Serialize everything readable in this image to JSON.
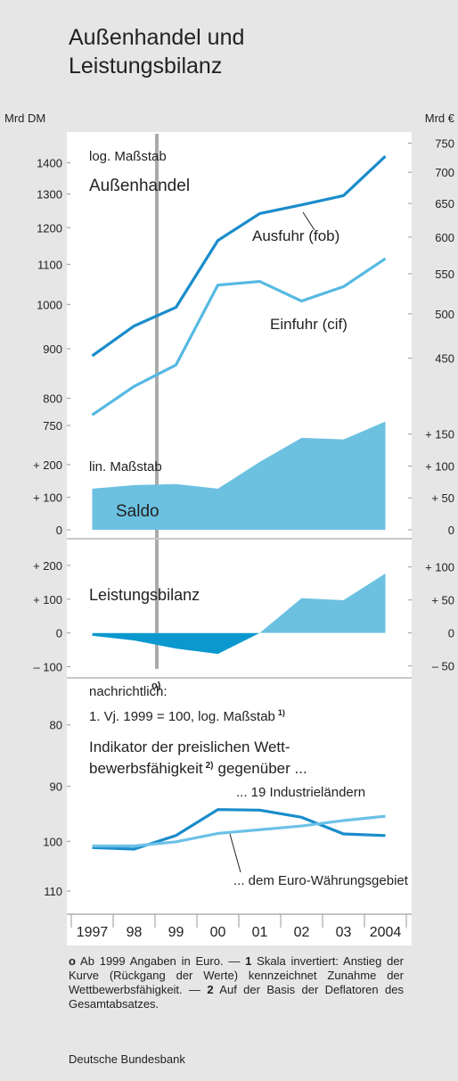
{
  "title": [
    "Außenhandel und",
    "Leistungsbilanz"
  ],
  "euro_marker": "o)",
  "chart_data": [
    {
      "type": "line",
      "log": true,
      "ylabel": "Mrd DM",
      "y2label": "Mrd €",
      "ylim": [
        750,
        1500
      ],
      "yticks": [
        750,
        800,
        900,
        1000,
        1100,
        1200,
        1300,
        1400
      ],
      "y2lim": [
        383.5,
        767
      ],
      "y2ticks": [
        450,
        500,
        550,
        600,
        650,
        700,
        750
      ],
      "annotations": [
        "log. Maßstab",
        "Außenhandel"
      ],
      "series": [
        {
          "name": "Ausfuhr (fob)",
          "color": "#1a8ccb",
          "values": [
            885,
            950,
            993,
            1164,
            1241,
            1267,
            1295,
            1422
          ]
        },
        {
          "name": "Einfuhr (cif)",
          "color": "#56b9e2",
          "values": [
            769,
            823,
            866,
            1047,
            1056,
            1008,
            1043,
            1115
          ]
        }
      ]
    },
    {
      "type": "area",
      "ylim": [
        0,
        350
      ],
      "yticks": [
        0,
        {
          "value": 100,
          "label": "+ 100"
        },
        {
          "value": 200,
          "label": "+ 200"
        }
      ],
      "y2lim": [
        0,
        179
      ],
      "y2ticks": [
        0,
        {
          "value": 50,
          "label": "+ 50"
        },
        {
          "value": 100,
          "label": "+ 100"
        },
        {
          "value": 150,
          "label": "+ 150"
        }
      ],
      "annotations": [
        "lin. Maßstab"
      ],
      "series": [
        {
          "name": "Saldo",
          "color": "#6cc1e1",
          "values": [
            126,
            137,
            140,
            126,
            208,
            282,
            277,
            332
          ]
        }
      ]
    },
    {
      "type": "area",
      "ylim": [
        -125,
        250
      ],
      "yticks": [
        {
          "value": -100,
          "label": "– 100"
        },
        0,
        {
          "value": 100,
          "label": "+ 100"
        },
        {
          "value": 200,
          "label": "+ 200"
        }
      ],
      "y2lim": [
        -64,
        128
      ],
      "y2ticks": [
        {
          "value": -50,
          "label": "– 50"
        },
        0,
        {
          "value": 50,
          "label": "+ 50"
        },
        {
          "value": 100,
          "label": "+ 100"
        }
      ],
      "series": [
        {
          "name": "Leistungsbilanz",
          "color": "#6cc1e1",
          "negative_color": "#0a98cf",
          "values": [
            -8,
            -22,
            -46,
            -62,
            0,
            103,
            97,
            176
          ]
        }
      ]
    },
    {
      "type": "line",
      "log": true,
      "inverted": true,
      "ylim": [
        75,
        115
      ],
      "yticks": [
        80,
        90,
        100,
        110
      ],
      "categories": [
        "1997",
        "98",
        "99",
        "00",
        "01",
        "02",
        "03",
        "2004"
      ],
      "annotations": [
        "nachrichtlich:"
      ],
      "scale_note": "1. Vj. 1999 = 100, log. Maßstab",
      "scale_note_ref": "1)",
      "indicator_title": "Indikator der preislichen Wett-",
      "indicator_title_2": "bewerbsfähigkeit",
      "indicator_ref": "2)",
      "indicator_title_3": "gegenüber ...",
      "series": [
        {
          "name": "... 19 Industrieländern",
          "color": "#1a8ccb",
          "values": [
            101.2,
            101.5,
            98.9,
            94.1,
            94.2,
            95.5,
            98.6,
            98.9
          ]
        },
        {
          "name": "... dem Euro-Währungsgebiet",
          "color": "#6cc1e6",
          "values": [
            100.9,
            100.9,
            100.1,
            98.5,
            97.8,
            97.1,
            96.1,
            95.3
          ]
        }
      ]
    }
  ],
  "footnotes": [
    {
      "marker": "o",
      "text": "Ab 1999 Angaben in Euro. —"
    },
    {
      "marker": "1",
      "text": "Skala invertiert: Anstieg der Kurve (Rückgang der Werte) kennzeichnet Zunahme der Wettbewerbsfähigkeit. —"
    },
    {
      "marker": "2",
      "text": "Auf der Basis der Deflatoren des Gesamtabsatzes."
    }
  ],
  "source": "Deutsche Bundesbank"
}
